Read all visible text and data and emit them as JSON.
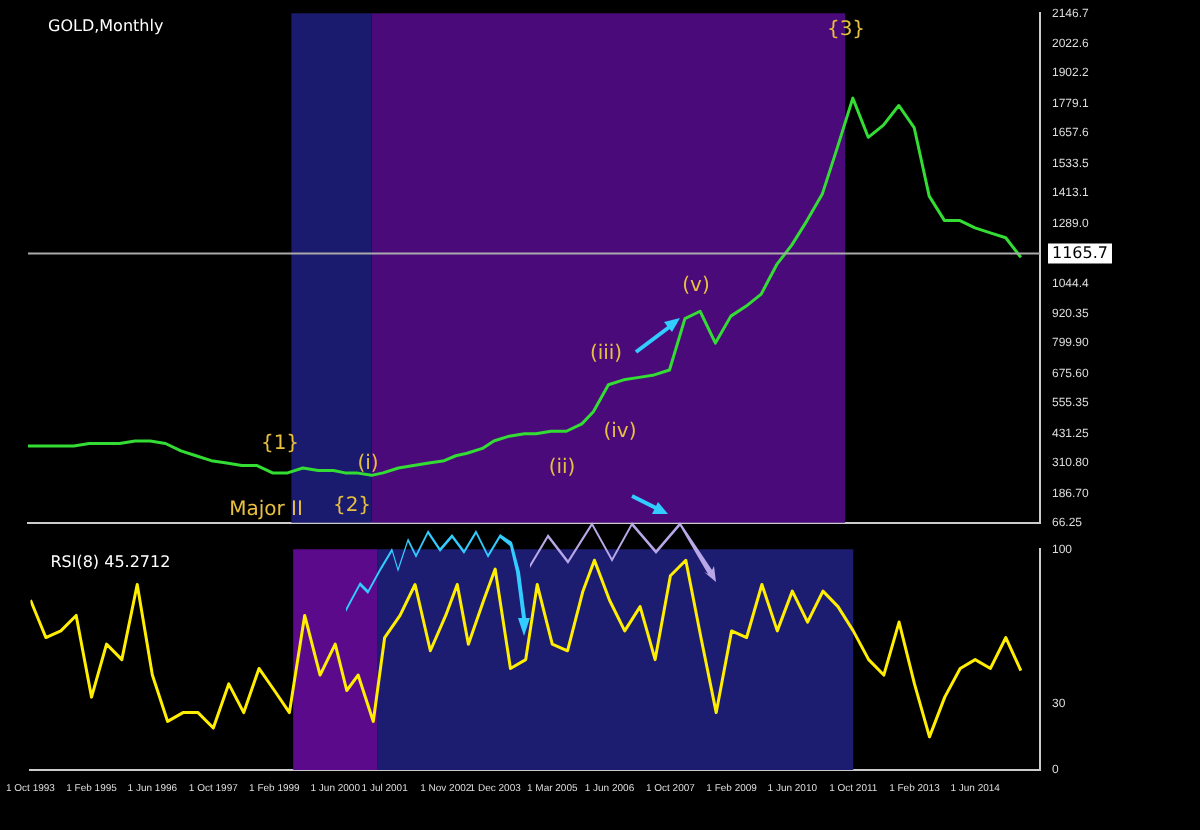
{
  "chart_data": [
    {
      "type": "line",
      "title": "GOLD,Monthly",
      "x": [
        "1993-10",
        "1994-02",
        "1994-06",
        "1994-10",
        "1995-02",
        "1995-06",
        "1995-10",
        "1996-02",
        "1996-06",
        "1996-10",
        "1997-02",
        "1997-06",
        "1997-10",
        "1998-02",
        "1998-06",
        "1998-10",
        "1999-02",
        "1999-06",
        "1999-10",
        "2000-02",
        "2000-06",
        "2000-09",
        "2000-12",
        "2001-04",
        "2001-07",
        "2001-11",
        "2002-03",
        "2002-07",
        "2002-11",
        "2003-02",
        "2003-05",
        "2003-09",
        "2003-12",
        "2004-04",
        "2004-08",
        "2004-11",
        "2005-03",
        "2005-07",
        "2005-11",
        "2006-02",
        "2006-06",
        "2006-10",
        "2007-02",
        "2007-06",
        "2007-10",
        "2008-02",
        "2008-06",
        "2008-10",
        "2009-02",
        "2009-06",
        "2009-10",
        "2010-02",
        "2010-06",
        "2010-10",
        "2011-02",
        "2011-06",
        "2011-10",
        "2012-02",
        "2012-06",
        "2012-10",
        "2013-02",
        "2013-06",
        "2013-10",
        "2014-02",
        "2014-06",
        "2014-10",
        "2015-02",
        "2015-06"
      ],
      "series": [
        {
          "color": "#33dd33",
          "values": [
            380,
            380,
            380,
            380,
            390,
            390,
            390,
            400,
            400,
            390,
            360,
            340,
            320,
            310,
            300,
            300,
            270,
            270,
            290,
            280,
            280,
            270,
            270,
            260,
            270,
            290,
            300,
            310,
            320,
            340,
            350,
            370,
            400,
            420,
            430,
            430,
            440,
            440,
            470,
            520,
            630,
            650,
            660,
            670,
            690,
            900,
            930,
            800,
            910,
            950,
            1000,
            1120,
            1200,
            1300,
            1410,
            1600,
            1800,
            1640,
            1690,
            1770,
            1680,
            1400,
            1300,
            1300,
            1270,
            1250,
            1230,
            1150
          ]
        }
      ],
      "xlim": [
        "1993-10",
        "2015-11"
      ],
      "ylim": [
        66.25,
        2146.7
      ],
      "yticks": [
        66.25,
        {
          "value": 186.7,
          "label": "186.70"
        },
        {
          "value": 310.8,
          "label": "310.80"
        },
        431.25,
        555.35,
        {
          "value": 675.6,
          "label": "675.60"
        },
        {
          "value": 799.9,
          "label": "799.90"
        },
        920.35,
        1044.4,
        {
          "value": 1289,
          "label": "1289.0"
        },
        1413.1,
        1533.5,
        1657.6,
        1779.1,
        1902.2,
        2022.6,
        2146.7
      ],
      "tick_labels": "y",
      "grid": false,
      "legend": false,
      "marker": "none",
      "line_style": "solid",
      "bands": [
        {
          "axis": "x",
          "from": "1999-07",
          "to": "2001-04",
          "color": "#1a1a6e"
        },
        {
          "axis": "x",
          "from": "2001-04",
          "to": "2011-08",
          "color": "#4a0a7a"
        }
      ],
      "ref_lines": [
        {
          "axis": "y",
          "value": 1165.7,
          "label": "1165.7",
          "color": "#aaaaaa"
        }
      ],
      "annotations": [
        "{1}",
        "{2}",
        "{3}",
        "Major II",
        "(i)",
        "(ii)",
        "(iii)",
        "(iv)",
        "(v)"
      ]
    },
    {
      "type": "line",
      "title": "RSI(8) 45.2712",
      "x": [
        "1993-10",
        "1994-02",
        "1994-06",
        "1994-10",
        "1995-02",
        "1995-06",
        "1995-10",
        "1996-02",
        "1996-06",
        "1996-10",
        "1997-02",
        "1997-06",
        "1997-10",
        "1998-02",
        "1998-06",
        "1998-10",
        "1999-02",
        "1999-06",
        "1999-10",
        "2000-02",
        "2000-06",
        "2000-09",
        "2000-12",
        "2001-04",
        "2001-07",
        "2001-11",
        "2002-03",
        "2002-07",
        "2002-11",
        "2003-02",
        "2003-05",
        "2003-09",
        "2003-12",
        "2004-04",
        "2004-08",
        "2004-11",
        "2005-03",
        "2005-07",
        "2005-11",
        "2006-02",
        "2006-06",
        "2006-10",
        "2007-02",
        "2007-06",
        "2007-10",
        "2008-02",
        "2008-06",
        "2008-10",
        "2009-02",
        "2009-06",
        "2009-10",
        "2010-02",
        "2010-06",
        "2010-10",
        "2011-02",
        "2011-06",
        "2011-10",
        "2012-02",
        "2012-06",
        "2012-10",
        "2013-02",
        "2013-06",
        "2013-10",
        "2014-02",
        "2014-06",
        "2014-10",
        "2015-02",
        "2015-06"
      ],
      "series": [
        {
          "color": "#ffee00",
          "values": [
            77,
            60,
            63,
            70,
            33,
            57,
            50,
            84,
            43,
            22,
            26,
            26,
            19,
            39,
            26,
            46,
            36,
            26,
            70,
            43,
            57,
            36,
            43,
            22,
            60,
            70,
            84,
            54,
            70,
            84,
            57,
            77,
            91,
            46,
            50,
            84,
            57,
            54,
            81,
            95,
            77,
            63,
            74,
            50,
            88,
            95,
            60,
            26,
            63,
            60,
            84,
            63,
            81,
            67,
            81,
            74,
            63,
            50,
            43,
            67,
            39,
            15,
            33,
            46,
            50,
            46,
            60,
            45
          ]
        }
      ],
      "xlim": [
        "1993-10",
        "2015-11"
      ],
      "xticks": [
        {
          "value": "1993-10-01",
          "label": "1 Oct 1993"
        },
        {
          "value": "1995-02-01",
          "label": "1 Feb 1995"
        },
        {
          "value": "1996-06-01",
          "label": "1 Jun 1996"
        },
        {
          "value": "1997-10-01",
          "label": "1 Oct 1997"
        },
        {
          "value": "1999-02-01",
          "label": "1 Feb 1999"
        },
        {
          "value": "2000-06-01",
          "label": "1 Jun 2000"
        },
        {
          "value": "2001-07-01",
          "label": "1 Jul 2001"
        },
        {
          "value": "2002-11-01",
          "label": "1 Nov 2002"
        },
        {
          "value": "2003-12-01",
          "label": "1 Dec 2003"
        },
        {
          "value": "2005-03-01",
          "label": "1 Mar 2005"
        },
        {
          "value": "2006-06-01",
          "label": "1 Jun 2006"
        },
        {
          "value": "2007-10-01",
          "label": "1 Oct 2007"
        },
        {
          "value": "2009-02-01",
          "label": "1 Feb 2009"
        },
        {
          "value": "2010-06-01",
          "label": "1 Jun 2010"
        },
        {
          "value": "2011-10-01",
          "label": "1 Oct 2011"
        },
        {
          "value": "2013-02-01",
          "label": "1 Feb 2013"
        },
        {
          "value": "2014-06-01",
          "label": "1 Jun 2014"
        }
      ],
      "ylim": [
        0,
        100
      ],
      "yticks": [
        0,
        30,
        100
      ],
      "grid": false,
      "legend": false,
      "marker": "none",
      "line_style": "solid",
      "bands": [
        {
          "axis": "x",
          "from": "1999-07",
          "to": "2001-05",
          "color": "#5a0a8a"
        },
        {
          "axis": "x",
          "from": "2001-05",
          "to": "2011-10",
          "color": "#1c1c70"
        }
      ]
    }
  ]
}
